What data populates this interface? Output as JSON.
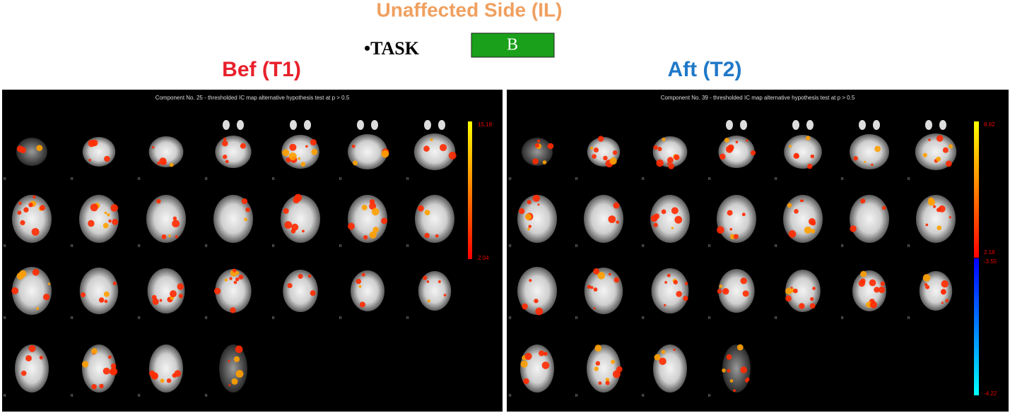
{
  "header": {
    "title": "Unaffected Side (IL)",
    "task_label": "•TASK",
    "task_box": "B"
  },
  "panels": [
    {
      "label": "Bef (T1)",
      "caption": "Component No. 25 - thresholded IC map   alternative hypothesis test at p > 0.5",
      "colorbar_labels": [
        "15.18",
        "2.04"
      ]
    },
    {
      "label": "Aft (T2)",
      "caption": "Component No. 39 - thresholded IC map   alternative hypothesis test at p > 0.5",
      "colorbar_labels": [
        "8.92",
        "2.18",
        "-3.55",
        "-4.22"
      ]
    }
  ],
  "slice_marker": "R"
}
